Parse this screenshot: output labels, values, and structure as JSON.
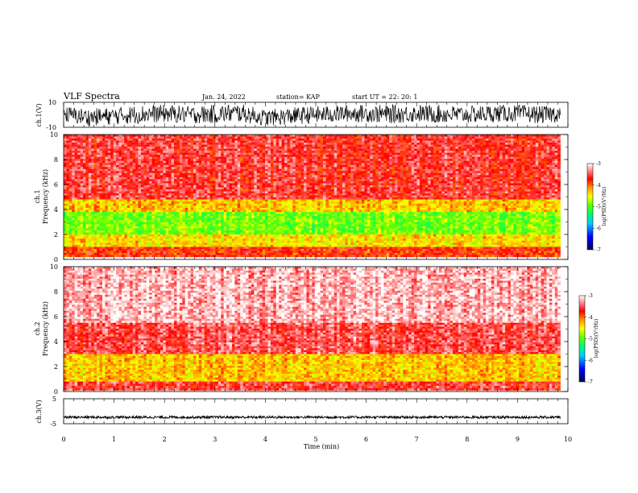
{
  "header": {
    "title": "VLF Spectra",
    "date": "Jan. 24, 2022",
    "station": "station= KAP",
    "start": "start  UT  =   22: 20: 1"
  },
  "chart_data": [
    {
      "type": "line",
      "name": "ch1-waveform",
      "ylabel": "ch.1(V)",
      "ylim": [
        -10,
        10
      ],
      "yticks": [
        "10",
        "-10"
      ],
      "xlim": [
        0,
        10
      ],
      "x_extent": [
        0,
        9.85
      ],
      "approx_profile": [
        {
          "t": 0.0,
          "low": -6,
          "high": 7
        },
        {
          "t": 0.5,
          "low": -9,
          "high": 5
        },
        {
          "t": 1.0,
          "low": -8,
          "high": 6
        },
        {
          "t": 1.5,
          "low": -7,
          "high": 8
        },
        {
          "t": 2.0,
          "low": -6,
          "high": 8
        },
        {
          "t": 2.5,
          "low": -7,
          "high": 7
        },
        {
          "t": 3.0,
          "low": -7,
          "high": 8
        },
        {
          "t": 3.5,
          "low": -6,
          "high": 9
        },
        {
          "t": 4.0,
          "low": -9,
          "high": 4
        },
        {
          "t": 4.5,
          "low": -8,
          "high": 6
        },
        {
          "t": 5.0,
          "low": -7,
          "high": 7
        },
        {
          "t": 5.5,
          "low": -6,
          "high": 8
        },
        {
          "t": 6.0,
          "low": -6,
          "high": 8
        },
        {
          "t": 6.5,
          "low": -7,
          "high": 8
        },
        {
          "t": 7.0,
          "low": -6,
          "high": 8
        },
        {
          "t": 7.5,
          "low": -7,
          "high": 8
        },
        {
          "t": 8.0,
          "low": -7,
          "high": 7
        },
        {
          "t": 8.5,
          "low": -6,
          "high": 8
        },
        {
          "t": 9.0,
          "low": -6,
          "high": 8
        },
        {
          "t": 9.5,
          "low": -7,
          "high": 7
        },
        {
          "t": 9.85,
          "low": -6,
          "high": 8
        }
      ]
    },
    {
      "type": "heatmap",
      "name": "ch1-spectrogram",
      "ylabel_line1": "ch.1",
      "ylabel_line2": "Frequency  (kHz)",
      "ylim": [
        0,
        10
      ],
      "yticks": [
        "0",
        "2",
        "4",
        "6",
        "8",
        "10"
      ],
      "xlim": [
        0,
        10
      ],
      "x_extent": [
        0,
        9.85
      ],
      "colorbar": {
        "label": "log(PSD)(V²/Hz)",
        "ticks": [
          "-3",
          "-4",
          "-5",
          "-6",
          "-7"
        ],
        "range": [
          -7,
          -3
        ]
      },
      "approx_bands": [
        {
          "f_low_khz": 4.8,
          "f_high_khz": 10,
          "log_psd": -3.6
        },
        {
          "f_low_khz": 3.8,
          "f_high_khz": 4.8,
          "log_psd": -4.3
        },
        {
          "f_low_khz": 2.0,
          "f_high_khz": 3.8,
          "log_psd": -4.9
        },
        {
          "f_low_khz": 1.0,
          "f_high_khz": 2.0,
          "log_psd": -4.4
        },
        {
          "f_low_khz": 0.2,
          "f_high_khz": 1.0,
          "log_psd": -3.8
        }
      ]
    },
    {
      "type": "heatmap",
      "name": "ch2-spectrogram",
      "ylabel_line1": "ch.2",
      "ylabel_line2": "Frequency  (kHz)",
      "ylim": [
        0,
        10
      ],
      "yticks": [
        "0",
        "2",
        "4",
        "6",
        "8",
        "10"
      ],
      "xlim": [
        0,
        10
      ],
      "x_extent": [
        0,
        9.85
      ],
      "colorbar": {
        "label": "log(PSD)(V²/Hz)",
        "ticks": [
          "-3",
          "-4",
          "-5",
          "-6",
          "-7"
        ],
        "range": [
          -7,
          -3
        ]
      },
      "approx_bands": [
        {
          "f_low_khz": 5.5,
          "f_high_khz": 10,
          "log_psd": -3.2
        },
        {
          "f_low_khz": 3.0,
          "f_high_khz": 5.5,
          "log_psd": -3.5
        },
        {
          "f_low_khz": 0.8,
          "f_high_khz": 3.0,
          "log_psd": -4.3
        },
        {
          "f_low_khz": 0.1,
          "f_high_khz": 0.8,
          "log_psd": -3.6
        }
      ]
    },
    {
      "type": "line",
      "name": "ch3-waveform",
      "ylabel": "ch.3(V)",
      "ylim": [
        -5,
        5
      ],
      "yticks": [
        "5",
        "-5"
      ],
      "xlim": [
        0,
        10
      ],
      "x_extent": [
        0,
        9.85
      ],
      "mean_level": -2.4,
      "band_halfwidth": 0.5
    }
  ],
  "xaxis": {
    "label": "Time  (min)",
    "ticks": [
      "0",
      "1",
      "2",
      "3",
      "4",
      "5",
      "6",
      "7",
      "8",
      "9",
      "10"
    ]
  },
  "colors": {
    "scale": [
      "#000080",
      "#0000ff",
      "#00c8ff",
      "#00ff64",
      "#64ff00",
      "#ffff00",
      "#ff9600",
      "#ff0000",
      "#ffffff"
    ],
    "trace": "#000000"
  }
}
